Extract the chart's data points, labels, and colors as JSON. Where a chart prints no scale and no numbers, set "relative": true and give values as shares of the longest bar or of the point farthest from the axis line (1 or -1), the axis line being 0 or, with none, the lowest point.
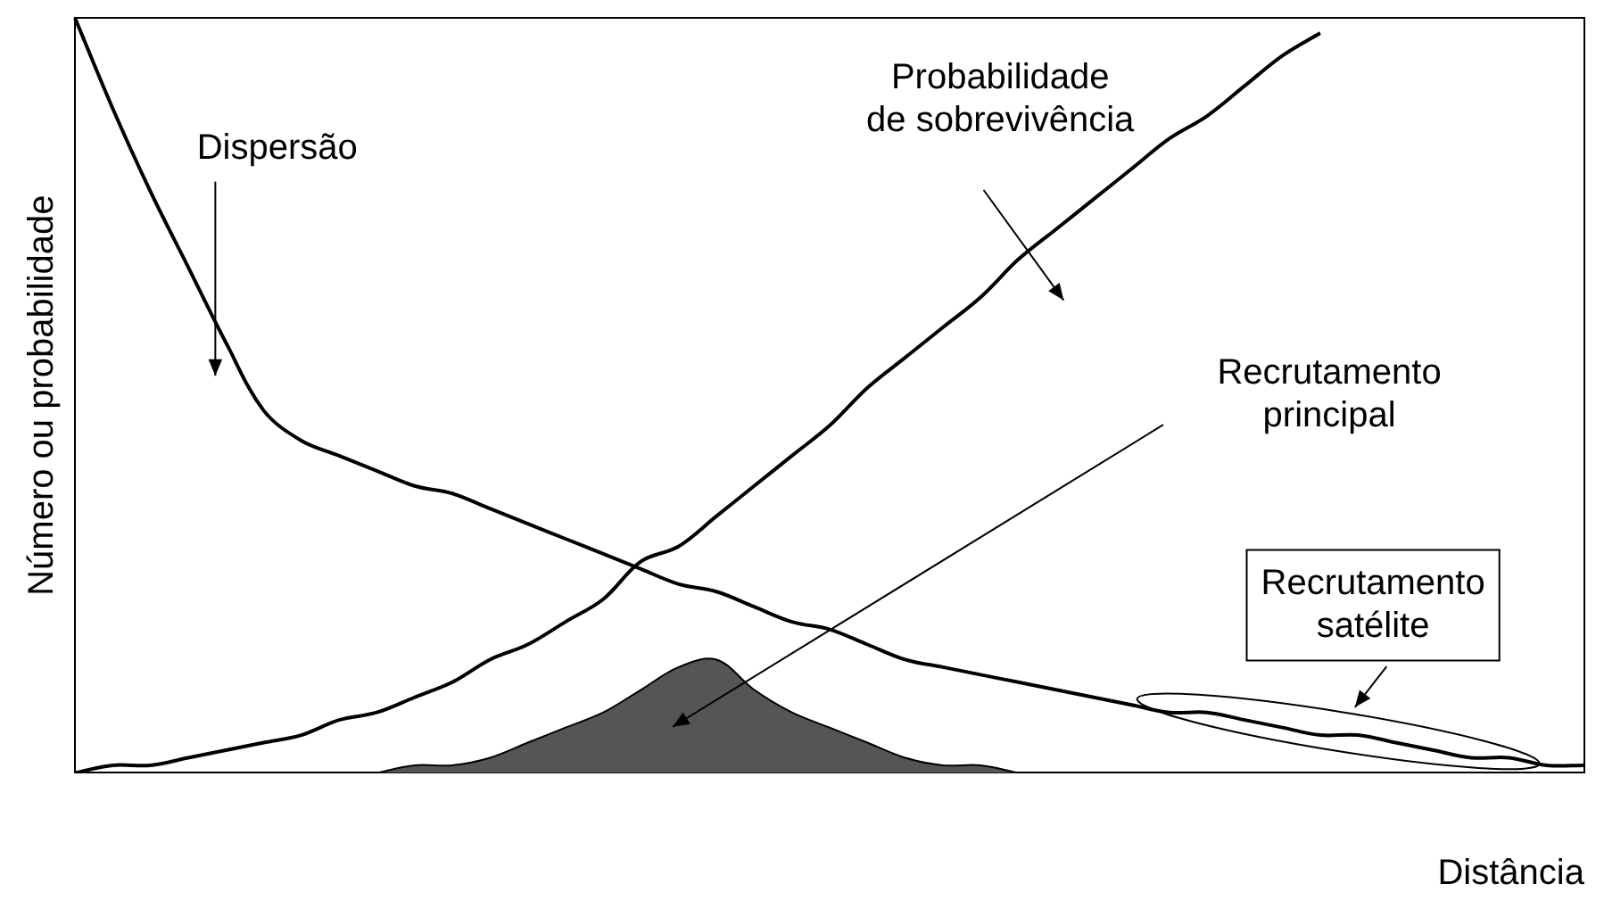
{
  "chart_data": {
    "type": "line",
    "relative": true,
    "xlabel": "Distância",
    "ylabel": "Número ou probabilidade",
    "legend": false,
    "grid": false,
    "marker": "none",
    "categories": [
      null,
      null,
      null,
      null,
      null,
      null,
      null,
      null,
      null,
      null,
      null,
      null,
      null,
      null,
      null,
      null,
      null,
      null,
      null,
      null,
      null,
      null,
      null,
      null,
      null,
      null,
      null,
      null,
      null,
      null,
      null,
      null,
      null,
      null,
      null,
      null,
      null,
      null,
      null,
      null,
      null
    ],
    "series": [
      {
        "color": "#000000",
        "values": [
          1.0,
          0.88,
          0.77,
          0.67,
          0.57,
          0.48,
          0.44,
          0.42,
          0.4,
          0.38,
          0.37,
          0.35,
          0.33,
          0.31,
          0.29,
          0.27,
          0.25,
          0.24,
          0.22,
          0.2,
          0.19,
          0.17,
          0.15,
          0.14,
          0.13,
          0.12,
          0.11,
          0.1,
          0.09,
          0.08,
          0.08,
          0.07,
          0.06,
          0.05,
          0.05,
          0.04,
          0.03,
          0.02,
          0.02,
          0.01,
          0.01
        ]
      },
      {
        "color": "#000000",
        "values": [
          0.0,
          0.01,
          0.01,
          0.02,
          0.03,
          0.04,
          0.05,
          0.07,
          0.08,
          0.1,
          0.12,
          0.15,
          0.17,
          0.2,
          0.23,
          0.28,
          0.3,
          0.34,
          0.38,
          0.42,
          0.46,
          0.51,
          0.55,
          0.59,
          0.63,
          0.68,
          0.72,
          0.76,
          0.8,
          0.84,
          0.87,
          0.91,
          0.95,
          0.98,
          null,
          null,
          null,
          null,
          null,
          null,
          null
        ]
      },
      {
        "type": "area",
        "color": "#555555",
        "values": [
          null,
          null,
          null,
          null,
          null,
          null,
          null,
          null,
          0.0,
          0.01,
          0.01,
          0.02,
          0.04,
          0.06,
          0.08,
          0.11,
          0.14,
          0.15,
          0.11,
          0.08,
          0.06,
          0.04,
          0.02,
          0.01,
          0.01,
          0.0,
          null,
          null,
          null,
          null,
          null,
          null,
          null,
          null,
          null,
          null,
          null,
          null,
          null,
          null,
          null
        ]
      }
    ],
    "annotations": [
      "Dispersão",
      "Probabilidade de sobrevivência",
      "Recrutamento principal",
      "Recrutamento satélite"
    ]
  }
}
